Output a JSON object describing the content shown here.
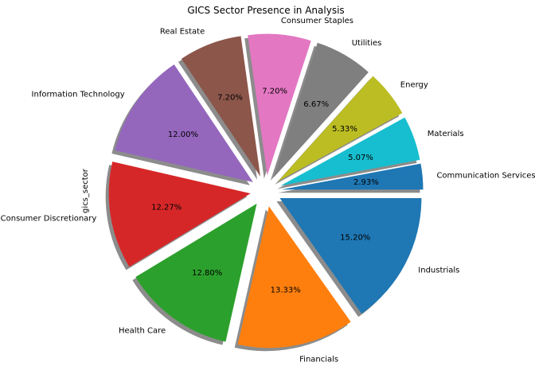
{
  "chart_data": {
    "type": "pie",
    "title": "GICS Sector Presence in Analysis",
    "ylabel": "gics_sector",
    "start_angle_deg": 0,
    "direction": "counterclockwise",
    "shadow": true,
    "slices": [
      {
        "label": "Communication Services",
        "value": 2.93,
        "pct_label": "2.93%",
        "color": "#1f77b4"
      },
      {
        "label": "Materials",
        "value": 5.07,
        "pct_label": "5.07%",
        "color": "#17becf"
      },
      {
        "label": "Energy",
        "value": 5.33,
        "pct_label": "5.33%",
        "color": "#bcbd22"
      },
      {
        "label": "Utilities",
        "value": 6.67,
        "pct_label": "6.67%",
        "color": "#7f7f7f"
      },
      {
        "label": "Consumer Staples",
        "value": 7.2,
        "pct_label": "7.20%",
        "color": "#e377c2"
      },
      {
        "label": "Real Estate",
        "value": 7.2,
        "pct_label": "7.20%",
        "color": "#8c564b"
      },
      {
        "label": "Information Technology",
        "value": 12.0,
        "pct_label": "12.00%",
        "color": "#9467bd"
      },
      {
        "label": "Consumer Discretionary",
        "value": 12.27,
        "pct_label": "12.27%",
        "color": "#d62728"
      },
      {
        "label": "Health Care",
        "value": 12.8,
        "pct_label": "12.80%",
        "color": "#2ca02c"
      },
      {
        "label": "Financials",
        "value": 13.33,
        "pct_label": "13.33%",
        "color": "#ff7f0e"
      },
      {
        "label": "Industrials",
        "value": 15.2,
        "pct_label": "15.20%",
        "color": "#1f77b4"
      }
    ]
  }
}
